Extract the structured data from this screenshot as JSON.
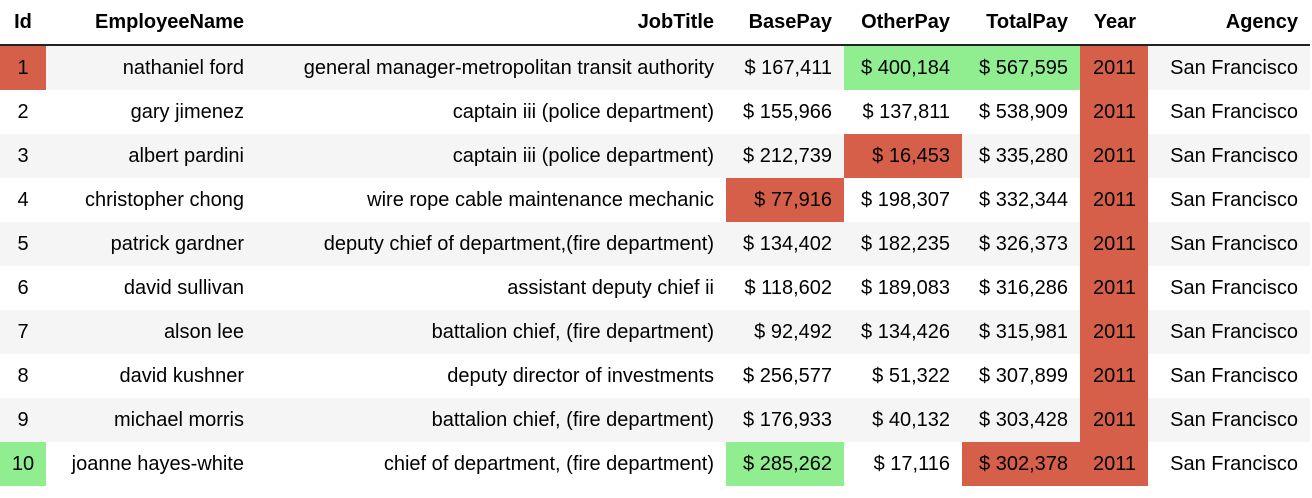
{
  "table": {
    "columns": [
      "Id",
      "EmployeeName",
      "JobTitle",
      "BasePay",
      "OtherPay",
      "TotalPay",
      "Year",
      "Agency"
    ],
    "rows": [
      {
        "id": "1",
        "name": "nathaniel ford",
        "job": "general manager-metropolitan transit authority",
        "base": "$ 167,411",
        "other": "$ 400,184",
        "total": "$ 567,595",
        "year": "2011",
        "agency": "San Francisco"
      },
      {
        "id": "2",
        "name": "gary jimenez",
        "job": "captain iii (police department)",
        "base": "$ 155,966",
        "other": "$ 137,811",
        "total": "$ 538,909",
        "year": "2011",
        "agency": "San Francisco"
      },
      {
        "id": "3",
        "name": "albert pardini",
        "job": "captain iii (police department)",
        "base": "$ 212,739",
        "other": "$ 16,453",
        "total": "$ 335,280",
        "year": "2011",
        "agency": "San Francisco"
      },
      {
        "id": "4",
        "name": "christopher chong",
        "job": "wire rope cable maintenance mechanic",
        "base": "$ 77,916",
        "other": "$ 198,307",
        "total": "$ 332,344",
        "year": "2011",
        "agency": "San Francisco"
      },
      {
        "id": "5",
        "name": "patrick gardner",
        "job": "deputy chief of department,(fire department)",
        "base": "$ 134,402",
        "other": "$ 182,235",
        "total": "$ 326,373",
        "year": "2011",
        "agency": "San Francisco"
      },
      {
        "id": "6",
        "name": "david sullivan",
        "job": "assistant deputy chief ii",
        "base": "$ 118,602",
        "other": "$ 189,083",
        "total": "$ 316,286",
        "year": "2011",
        "agency": "San Francisco"
      },
      {
        "id": "7",
        "name": "alson lee",
        "job": "battalion chief, (fire department)",
        "base": "$ 92,492",
        "other": "$ 134,426",
        "total": "$ 315,981",
        "year": "2011",
        "agency": "San Francisco"
      },
      {
        "id": "8",
        "name": "david kushner",
        "job": "deputy director of investments",
        "base": "$ 256,577",
        "other": "$ 51,322",
        "total": "$ 307,899",
        "year": "2011",
        "agency": "San Francisco"
      },
      {
        "id": "9",
        "name": "michael morris",
        "job": "battalion chief, (fire department)",
        "base": "$ 176,933",
        "other": "$ 40,132",
        "total": "$ 303,428",
        "year": "2011",
        "agency": "San Francisco"
      },
      {
        "id": "10",
        "name": "joanne hayes-white",
        "job": "chief of department, (fire department)",
        "base": "$ 285,262",
        "other": "$ 17,116",
        "total": "$ 302,378",
        "year": "2011",
        "agency": "San Francisco"
      }
    ]
  },
  "colors": {
    "highlight_max": "#90ee90",
    "highlight_min": "#d65f4a",
    "row_stripe": "#f5f5f5"
  }
}
